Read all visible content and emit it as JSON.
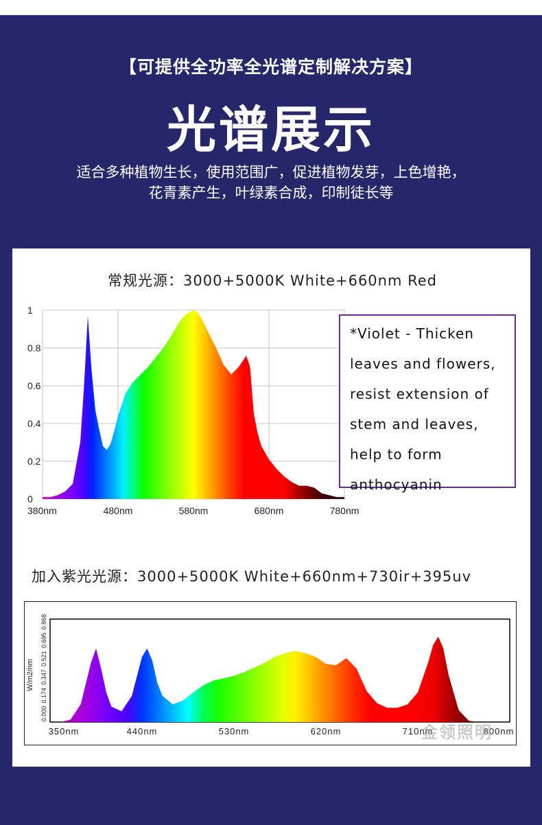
{
  "header": {
    "subtitle": "【可提供全功率全光谱定制解决方案】",
    "title": "光谱展示",
    "desc_line1": "适合多种植物生长，使用范围广，促进植物发芽，上色增艳，",
    "desc_line2": "花青素产生，叶绿素合成，印制徒长等"
  },
  "note": {
    "lines": [
      "*Violet - Thicken",
      "leaves and flowers,",
      "resist extension of",
      "stem and leaves,",
      "help to form",
      "anthocyanin"
    ]
  },
  "watermark": "金领照明",
  "colors": {
    "background": "#26276b",
    "panel": "#ffffff",
    "note_border": "#6a2a9a"
  },
  "chart_data": [
    {
      "type": "area",
      "title": "常规光源：3000+5000K White+660nm Red",
      "xlabel": "",
      "ylabel": "",
      "xlim": [
        380,
        780
      ],
      "ylim": [
        0,
        1
      ],
      "x_ticks": [
        "380nm",
        "480nm",
        "580nm",
        "680nm",
        "780nm"
      ],
      "x_tick_values": [
        380,
        480,
        580,
        680,
        780
      ],
      "y_ticks": [
        "0",
        "0.2",
        "0.4",
        "0.6",
        "0.8",
        "1"
      ],
      "y_tick_values": [
        0,
        0.2,
        0.4,
        0.6,
        0.8,
        1
      ],
      "grid": true,
      "x": [
        380,
        390,
        400,
        410,
        420,
        430,
        435,
        440,
        445,
        450,
        455,
        460,
        465,
        470,
        475,
        480,
        490,
        500,
        510,
        520,
        530,
        540,
        550,
        560,
        570,
        580,
        585,
        590,
        600,
        610,
        620,
        630,
        640,
        650,
        655,
        660,
        665,
        670,
        680,
        690,
        700,
        710,
        720,
        730,
        740,
        750,
        760,
        770,
        780
      ],
      "y": [
        0.01,
        0.01,
        0.02,
        0.04,
        0.08,
        0.3,
        0.6,
        0.97,
        0.68,
        0.47,
        0.37,
        0.28,
        0.26,
        0.29,
        0.36,
        0.44,
        0.56,
        0.62,
        0.66,
        0.7,
        0.75,
        0.8,
        0.86,
        0.93,
        0.98,
        1.0,
        0.99,
        0.96,
        0.88,
        0.8,
        0.71,
        0.66,
        0.7,
        0.76,
        0.7,
        0.45,
        0.35,
        0.28,
        0.21,
        0.16,
        0.12,
        0.09,
        0.07,
        0.07,
        0.06,
        0.03,
        0.02,
        0.01,
        0.01
      ]
    },
    {
      "type": "area",
      "title": "加入紫光光源：3000+5000K White+660nm+730ir+395uv",
      "xlabel": "",
      "ylabel": "W/m2/nm",
      "xlim": [
        350,
        800
      ],
      "ylim": [
        0,
        0.868
      ],
      "x_ticks": [
        "350nm",
        "440nm",
        "530nm",
        "620nm",
        "710nm",
        "800nm"
      ],
      "x_tick_values": [
        350,
        440,
        530,
        620,
        710,
        800
      ],
      "y_ticks": [
        "0.000",
        "0.174",
        "0.347",
        "0.521",
        "0.695",
        "0.868"
      ],
      "y_tick_values": [
        0,
        0.174,
        0.347,
        0.521,
        0.695,
        0.868
      ],
      "grid": false,
      "x": [
        350,
        360,
        370,
        380,
        390,
        395,
        400,
        405,
        410,
        420,
        430,
        440,
        445,
        450,
        455,
        460,
        470,
        480,
        490,
        500,
        510,
        520,
        530,
        540,
        550,
        560,
        570,
        580,
        590,
        600,
        610,
        620,
        630,
        640,
        650,
        660,
        670,
        680,
        690,
        700,
        710,
        720,
        725,
        730,
        735,
        740,
        750,
        760,
        770,
        780,
        800
      ],
      "y": [
        0,
        0,
        0.02,
        0.15,
        0.5,
        0.62,
        0.45,
        0.25,
        0.13,
        0.09,
        0.22,
        0.55,
        0.62,
        0.52,
        0.33,
        0.22,
        0.15,
        0.18,
        0.25,
        0.31,
        0.35,
        0.37,
        0.39,
        0.42,
        0.46,
        0.5,
        0.55,
        0.58,
        0.6,
        0.58,
        0.55,
        0.49,
        0.48,
        0.54,
        0.45,
        0.26,
        0.16,
        0.12,
        0.12,
        0.15,
        0.25,
        0.5,
        0.65,
        0.72,
        0.62,
        0.4,
        0.1,
        0.01,
        0,
        0,
        0
      ]
    }
  ]
}
